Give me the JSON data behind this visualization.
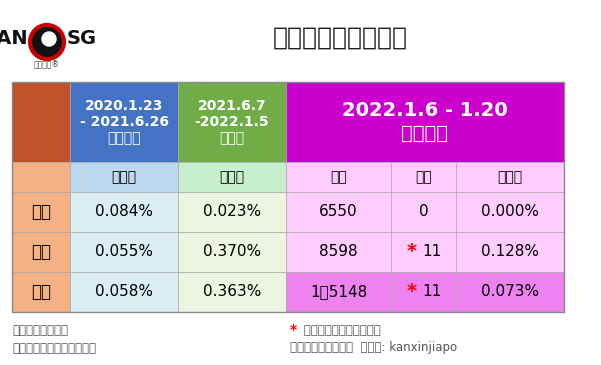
{
  "title": "新加坡死亡病例统计",
  "bg_color": "#ffffff",
  "header_row1": {
    "col0_bg": "#C0522A",
    "col1_text": "2020.1.23\n- 2021.6.26\n原始病毒",
    "col1_bg": "#4472C4",
    "col2_text": "2021.6.7\n-2022.1.5\n德尔塔",
    "col2_bg": "#70AD47",
    "col34_text": "2022.1.6 - 1.20\n奥密克戎",
    "col34_bg": "#CC00CC"
  },
  "header_row2": {
    "col0_bg": "#F4B183",
    "col1_text": "病死率",
    "col1_bg": "#BDD7EE",
    "col2_text": "病死率",
    "col2_bg": "#C6EFCE",
    "col3_text": "确诊",
    "col3_bg": "#FFCCFF",
    "col4_text": "死亡",
    "col4_bg": "#FFCCFF",
    "col5_text": "病死率",
    "col5_bg": "#FFCCFF"
  },
  "rows": [
    {
      "label": "境外",
      "col0_bg": "#F4B183",
      "col1": "0.084%",
      "col1_bg": "#DAEEF3",
      "col2": "0.023%",
      "col2_bg": "#EBF5E0",
      "col3": "6550",
      "col3_bg": "#FFCCFF",
      "col4": "0",
      "col4_star": false,
      "col4_bg": "#FFCCFF",
      "col5": "0.000%",
      "col5_bg": "#FFCCFF"
    },
    {
      "label": "本土",
      "col0_bg": "#F4B183",
      "col1": "0.055%",
      "col1_bg": "#DAEEF3",
      "col2": "0.370%",
      "col2_bg": "#EBF5E0",
      "col3": "8598",
      "col3_bg": "#FFCCFF",
      "col4": "11",
      "col4_star": true,
      "col4_bg": "#FFCCFF",
      "col5": "0.128%",
      "col5_bg": "#FFCCFF"
    },
    {
      "label": "合计",
      "col0_bg": "#F4B183",
      "col1": "0.058%",
      "col1_bg": "#DAEEF3",
      "col2": "0.363%",
      "col2_bg": "#EBF5E0",
      "col3": "1万5148",
      "col3_bg": "#EE82EE",
      "col4": "11",
      "col4_star": true,
      "col4_bg": "#EE82EE",
      "col5": "0.073%",
      "col5_bg": "#EE82EE"
    }
  ],
  "footnote_left1": "原始数据：卫生部",
  "footnote_left2": "《新加坡眼》分时期、制表",
  "footnote_right1": " 皆为前一波的德尔塔病例",
  "footnote_right2": "至今无奥密克戎死亡  微信号: kanxinjiapo"
}
